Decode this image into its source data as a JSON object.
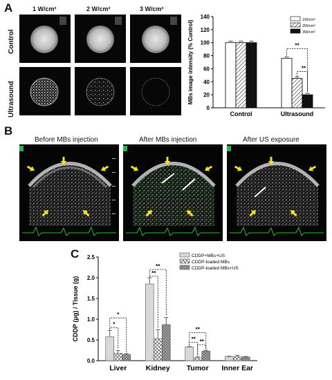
{
  "panels": {
    "a": "A",
    "b": "B",
    "c": "C"
  },
  "panel_a": {
    "column_headers": [
      "1 W/cm²",
      "2 W/cm²",
      "3 W/cm²"
    ],
    "row_labels": [
      "Control",
      "Ultrasound"
    ]
  },
  "panel_b": {
    "titles": [
      "Before MBs injection",
      "After MBs injection",
      "After US exposure"
    ]
  },
  "colors": {
    "arrow": "#f4e21a",
    "ecg": "#22c422",
    "bar_dark": "#222222",
    "bar_light": "#d8d8d8",
    "bar_white": "#ffffff"
  },
  "chart_data": [
    {
      "type": "bar",
      "ylabel": "MBs image intensity (% Control)",
      "ylim": [
        0,
        140
      ],
      "yticks": [
        0,
        20,
        40,
        60,
        80,
        100,
        120,
        140
      ],
      "categories": [
        "Control",
        "Ultrasound"
      ],
      "legend_position": "top-right",
      "series": [
        {
          "name": "1W/cm²",
          "values": [
            100,
            76
          ],
          "pattern": "white"
        },
        {
          "name": "2W/cm²",
          "values": [
            100,
            45
          ],
          "pattern": "hatch"
        },
        {
          "name": "3W/cm²",
          "values": [
            100,
            20
          ],
          "pattern": "black"
        }
      ],
      "significance": [
        "**",
        "**"
      ]
    },
    {
      "type": "bar",
      "ylabel": "CDDP (μg) / Tissue (g)",
      "ylim": [
        0,
        2.5
      ],
      "yticks": [
        "0.0",
        "0.5",
        "1.0",
        "1.5",
        "2.0",
        "2.5"
      ],
      "categories": [
        "Liver",
        "Kidney",
        "Tumor",
        "Inner Ear"
      ],
      "legend_position": "top-right",
      "series": [
        {
          "name": "CDDP+MBs+US",
          "values": [
            0.58,
            1.85,
            0.33,
            0.1
          ],
          "errors": [
            0.15,
            0.15,
            0.01,
            0.01
          ]
        },
        {
          "name": "CDDP-loaded MBs",
          "values": [
            0.18,
            0.53,
            0.07,
            0.1
          ],
          "errors": [
            0.06,
            0.22,
            0.03,
            0.03
          ]
        },
        {
          "name": "CDDP-loaded MBs+US",
          "values": [
            0.15,
            0.87,
            0.23,
            0.09
          ],
          "errors": [
            0.02,
            0.17,
            0.02,
            0.01
          ]
        }
      ],
      "significance": [
        "*",
        "*",
        "**",
        "**",
        "**",
        "**",
        "**"
      ]
    }
  ]
}
